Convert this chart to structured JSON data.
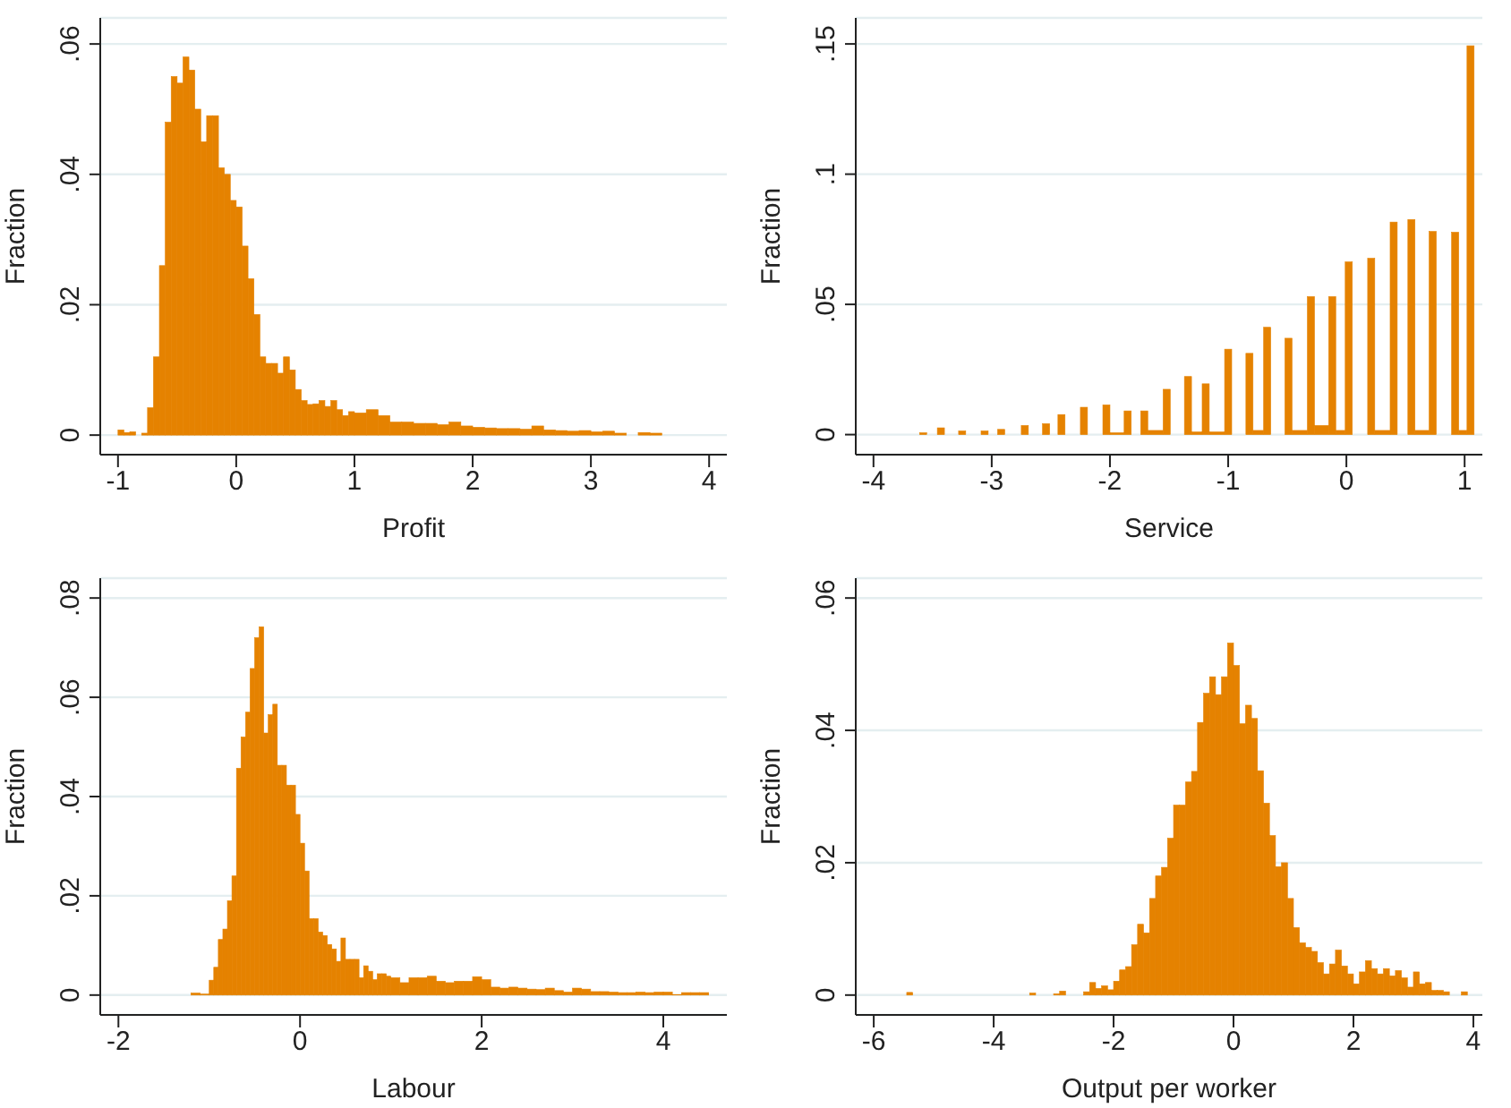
{
  "chart_data": [
    {
      "type": "histogram",
      "xlabel": "Profit",
      "ylabel": "Fraction",
      "color": "#e58200",
      "grid": "y",
      "xlim": [
        -1.15,
        4.15
      ],
      "ylim": [
        -0.003,
        0.064
      ],
      "xticks": [
        -1,
        0,
        1,
        2,
        3,
        4
      ],
      "yticks": [
        {
          "value": 0,
          "label": "0"
        },
        {
          "value": 0.02,
          "label": ".02"
        },
        {
          "value": 0.04,
          "label": ".04"
        },
        {
          "value": 0.06,
          "label": ".06"
        }
      ],
      "bins": [
        -1,
        -0.95,
        -0.9,
        -0.85,
        -0.8,
        -0.75,
        -0.7,
        -0.65,
        -0.6,
        -0.55,
        -0.5,
        -0.45,
        -0.4,
        -0.35,
        -0.3,
        -0.25,
        -0.2,
        -0.15,
        -0.1,
        -0.05,
        0,
        0.05,
        0.1,
        0.15,
        0.2,
        0.25,
        0.3,
        0.35,
        0.4,
        0.45,
        0.5,
        0.55,
        0.6,
        0.65,
        0.7,
        0.75,
        0.8,
        0.85,
        0.9,
        0.95,
        1,
        1.1,
        1.2,
        1.3,
        1.4,
        1.5,
        1.6,
        1.7,
        1.8,
        1.9,
        2,
        2.1,
        2.2,
        2.3,
        2.4,
        2.5,
        2.6,
        2.7,
        2.8,
        2.9,
        3,
        3.1,
        3.2,
        3.3,
        3.4,
        3.5,
        3.6
      ],
      "values": [
        0.0008,
        0.0004,
        0.0005,
        0,
        0.0003,
        0.0042,
        0.012,
        0.026,
        0.048,
        0.055,
        0.054,
        0.058,
        0.056,
        0.05,
        0.045,
        0.049,
        0.049,
        0.041,
        0.04,
        0.036,
        0.035,
        0.029,
        0.024,
        0.0185,
        0.012,
        0.011,
        0.011,
        0.0095,
        0.012,
        0.01,
        0.007,
        0.0053,
        0.0047,
        0.0048,
        0.0053,
        0.0044,
        0.0053,
        0.0039,
        0.003,
        0.0036,
        0.0034,
        0.0039,
        0.003,
        0.002,
        0.002,
        0.0018,
        0.0018,
        0.0016,
        0.002,
        0.0014,
        0.0012,
        0.0011,
        0.001,
        0.001,
        0.0009,
        0.0014,
        0.0008,
        0.0007,
        0.0006,
        0.0007,
        0.0005,
        0.0006,
        0.0003,
        0,
        0.0004,
        0.0003
      ]
    },
    {
      "type": "histogram",
      "xlabel": "Service",
      "ylabel": "Fraction",
      "color": "#e58200",
      "grid": "y",
      "xlim": [
        -4.15,
        1.15
      ],
      "ylim": [
        -0.0077,
        0.16
      ],
      "xticks": [
        -4,
        -3,
        -2,
        -1,
        0,
        1
      ],
      "yticks": [
        {
          "value": 0,
          "label": "0"
        },
        {
          "value": 0.05,
          "label": ".05"
        },
        {
          "value": 0.1,
          "label": ".1"
        },
        {
          "value": 0.15,
          "label": ".15"
        }
      ],
      "bins": [
        -3.61,
        -3.55,
        -3.46,
        -3.4,
        -3.28,
        -3.22,
        -3.09,
        -3.03,
        -2.95,
        -2.89,
        -2.75,
        -2.69,
        -2.57,
        -2.51,
        -2.44,
        -2.38,
        -2.25,
        -2.19,
        -2.06,
        -2,
        -1.88,
        -1.82,
        -1.74,
        -1.68,
        -1.55,
        -1.49,
        -1.37,
        -1.31,
        -1.22,
        -1.16,
        -1.03,
        -0.97,
        -0.85,
        -0.79,
        -0.7,
        -0.64,
        -0.52,
        -0.46,
        -0.33,
        -0.27,
        -0.15,
        -0.09,
        -0.01,
        0.05,
        0.18,
        0.24,
        0.37,
        0.43,
        0.52,
        0.58,
        0.7,
        0.76,
        0.89,
        0.95,
        1.02,
        1.08
      ],
      "values": [
        0.0007,
        0,
        0.0026,
        0,
        0.0014,
        0,
        0.0014,
        0,
        0.002,
        0,
        0.0035,
        0,
        0.0042,
        0,
        0.0077,
        0,
        0.0105,
        0,
        0.0114,
        0.0007,
        0.0091,
        0,
        0.0091,
        0.0016,
        0.0174,
        0,
        0.0223,
        0.001,
        0.0195,
        0.001,
        0.0328,
        0,
        0.0312,
        0.0016,
        0.0412,
        0,
        0.037,
        0.0016,
        0.053,
        0.0035,
        0.053,
        0.0016,
        0.0663,
        0,
        0.0677,
        0.0016,
        0.0816,
        0,
        0.0826,
        0.0016,
        0.078,
        0,
        0.0777,
        0.0016,
        0.1493
      ]
    },
    {
      "type": "histogram",
      "xlabel": "Labour",
      "ylabel": "Fraction",
      "color": "#e58200",
      "grid": "y",
      "xlim": [
        -2.2,
        4.7
      ],
      "ylim": [
        -0.004,
        0.084
      ],
      "xticks": [
        -2,
        0,
        2,
        4
      ],
      "yticks": [
        {
          "value": 0,
          "label": "0"
        },
        {
          "value": 0.02,
          "label": ".02"
        },
        {
          "value": 0.04,
          "label": ".04"
        },
        {
          "value": 0.06,
          "label": ".06"
        },
        {
          "value": 0.08,
          "label": ".08"
        }
      ],
      "bins": [
        -1.2,
        -1.1,
        -1,
        -0.95,
        -0.9,
        -0.85,
        -0.8,
        -0.75,
        -0.7,
        -0.65,
        -0.6,
        -0.55,
        -0.5,
        -0.45,
        -0.4,
        -0.35,
        -0.3,
        -0.25,
        -0.2,
        -0.15,
        -0.1,
        -0.05,
        0,
        0.05,
        0.1,
        0.15,
        0.2,
        0.25,
        0.3,
        0.35,
        0.4,
        0.45,
        0.5,
        0.55,
        0.6,
        0.65,
        0.7,
        0.75,
        0.8,
        0.85,
        0.9,
        0.95,
        1,
        1.1,
        1.2,
        1.3,
        1.4,
        1.5,
        1.6,
        1.7,
        1.8,
        1.9,
        2,
        2.1,
        2.2,
        2.3,
        2.4,
        2.5,
        2.6,
        2.7,
        2.8,
        2.9,
        3,
        3.1,
        3.2,
        3.3,
        3.4,
        3.5,
        3.6,
        3.7,
        3.8,
        3.9,
        4,
        4.1,
        4.2,
        4.3,
        4.4,
        4.5
      ],
      "values": [
        0.0004,
        0.0002,
        0.003,
        0.0056,
        0.0112,
        0.0133,
        0.019,
        0.024,
        0.0457,
        0.052,
        0.057,
        0.0658,
        0.072,
        0.0742,
        0.0528,
        0.0565,
        0.0586,
        0.0463,
        0.0463,
        0.0423,
        0.0423,
        0.0364,
        0.0306,
        0.025,
        0.0154,
        0.0154,
        0.0127,
        0.012,
        0.0102,
        0.0093,
        0.0068,
        0.0115,
        0.0072,
        0.0072,
        0.0072,
        0.0035,
        0.0059,
        0.0048,
        0.0031,
        0.0043,
        0.0043,
        0.0038,
        0.0035,
        0.0025,
        0.0035,
        0.0035,
        0.0038,
        0.0028,
        0.0025,
        0.0028,
        0.0028,
        0.0037,
        0.0031,
        0.0016,
        0.0014,
        0.0016,
        0.0014,
        0.0012,
        0.0011,
        0.0014,
        0.0009,
        0.0006,
        0.0014,
        0.0012,
        0.0007,
        0.0007,
        0.0006,
        0.0005,
        0.0005,
        0.0006,
        0.0005,
        0.0006,
        0.0006,
        0.0001,
        0.0005,
        0.0005,
        0.0005
      ]
    },
    {
      "type": "histogram",
      "xlabel": "Output per worker",
      "ylabel": "Fraction",
      "color": "#e58200",
      "grid": "y",
      "xlim": [
        -6.3,
        4.15
      ],
      "ylim": [
        -0.003,
        0.063
      ],
      "xticks": [
        -6,
        -4,
        -2,
        0,
        2,
        4
      ],
      "yticks": [
        {
          "value": 0,
          "label": "0"
        },
        {
          "value": 0.02,
          "label": ".02"
        },
        {
          "value": 0.04,
          "label": ".04"
        },
        {
          "value": 0.06,
          "label": ".06"
        }
      ],
      "bins": [
        -5.45,
        -5.35,
        -3.4,
        -3.3,
        -3,
        -2.9,
        -2.8,
        -2.5,
        -2.4,
        -2.3,
        -2.2,
        -2.1,
        -2,
        -1.9,
        -1.8,
        -1.7,
        -1.6,
        -1.5,
        -1.4,
        -1.3,
        -1.2,
        -1.1,
        -1,
        -0.9,
        -0.8,
        -0.7,
        -0.6,
        -0.5,
        -0.4,
        -0.3,
        -0.2,
        -0.1,
        0,
        0.1,
        0.2,
        0.3,
        0.4,
        0.5,
        0.6,
        0.7,
        0.8,
        0.9,
        1,
        1.1,
        1.2,
        1.3,
        1.4,
        1.5,
        1.6,
        1.7,
        1.8,
        1.9,
        2,
        2.1,
        2.2,
        2.3,
        2.4,
        2.5,
        2.6,
        2.7,
        2.8,
        2.9,
        3,
        3.1,
        3.2,
        3.3,
        3.4,
        3.5,
        3.6,
        3.8,
        3.9
      ],
      "values": [
        0.0004,
        0,
        0.0003,
        0,
        0.0002,
        0.0006,
        0,
        0.0005,
        0.0019,
        0.001,
        0.0014,
        0.0008,
        0.0021,
        0.0038,
        0.0043,
        0.0076,
        0.0107,
        0.0094,
        0.0146,
        0.018,
        0.0193,
        0.0237,
        0.0287,
        0.0287,
        0.0322,
        0.0338,
        0.0412,
        0.0456,
        0.0481,
        0.0454,
        0.0481,
        0.0532,
        0.0498,
        0.041,
        0.0438,
        0.0418,
        0.0339,
        0.029,
        0.0241,
        0.0194,
        0.02,
        0.0146,
        0.0102,
        0.0079,
        0.0072,
        0.0066,
        0.0049,
        0.0032,
        0.0047,
        0.0068,
        0.0044,
        0.0032,
        0.0017,
        0.0035,
        0.0052,
        0.004,
        0.0032,
        0.004,
        0.0029,
        0.0037,
        0.0026,
        0.0012,
        0.0035,
        0.0017,
        0.0019,
        0.0007,
        0.0007,
        0.0005,
        0,
        0.0005
      ]
    }
  ]
}
